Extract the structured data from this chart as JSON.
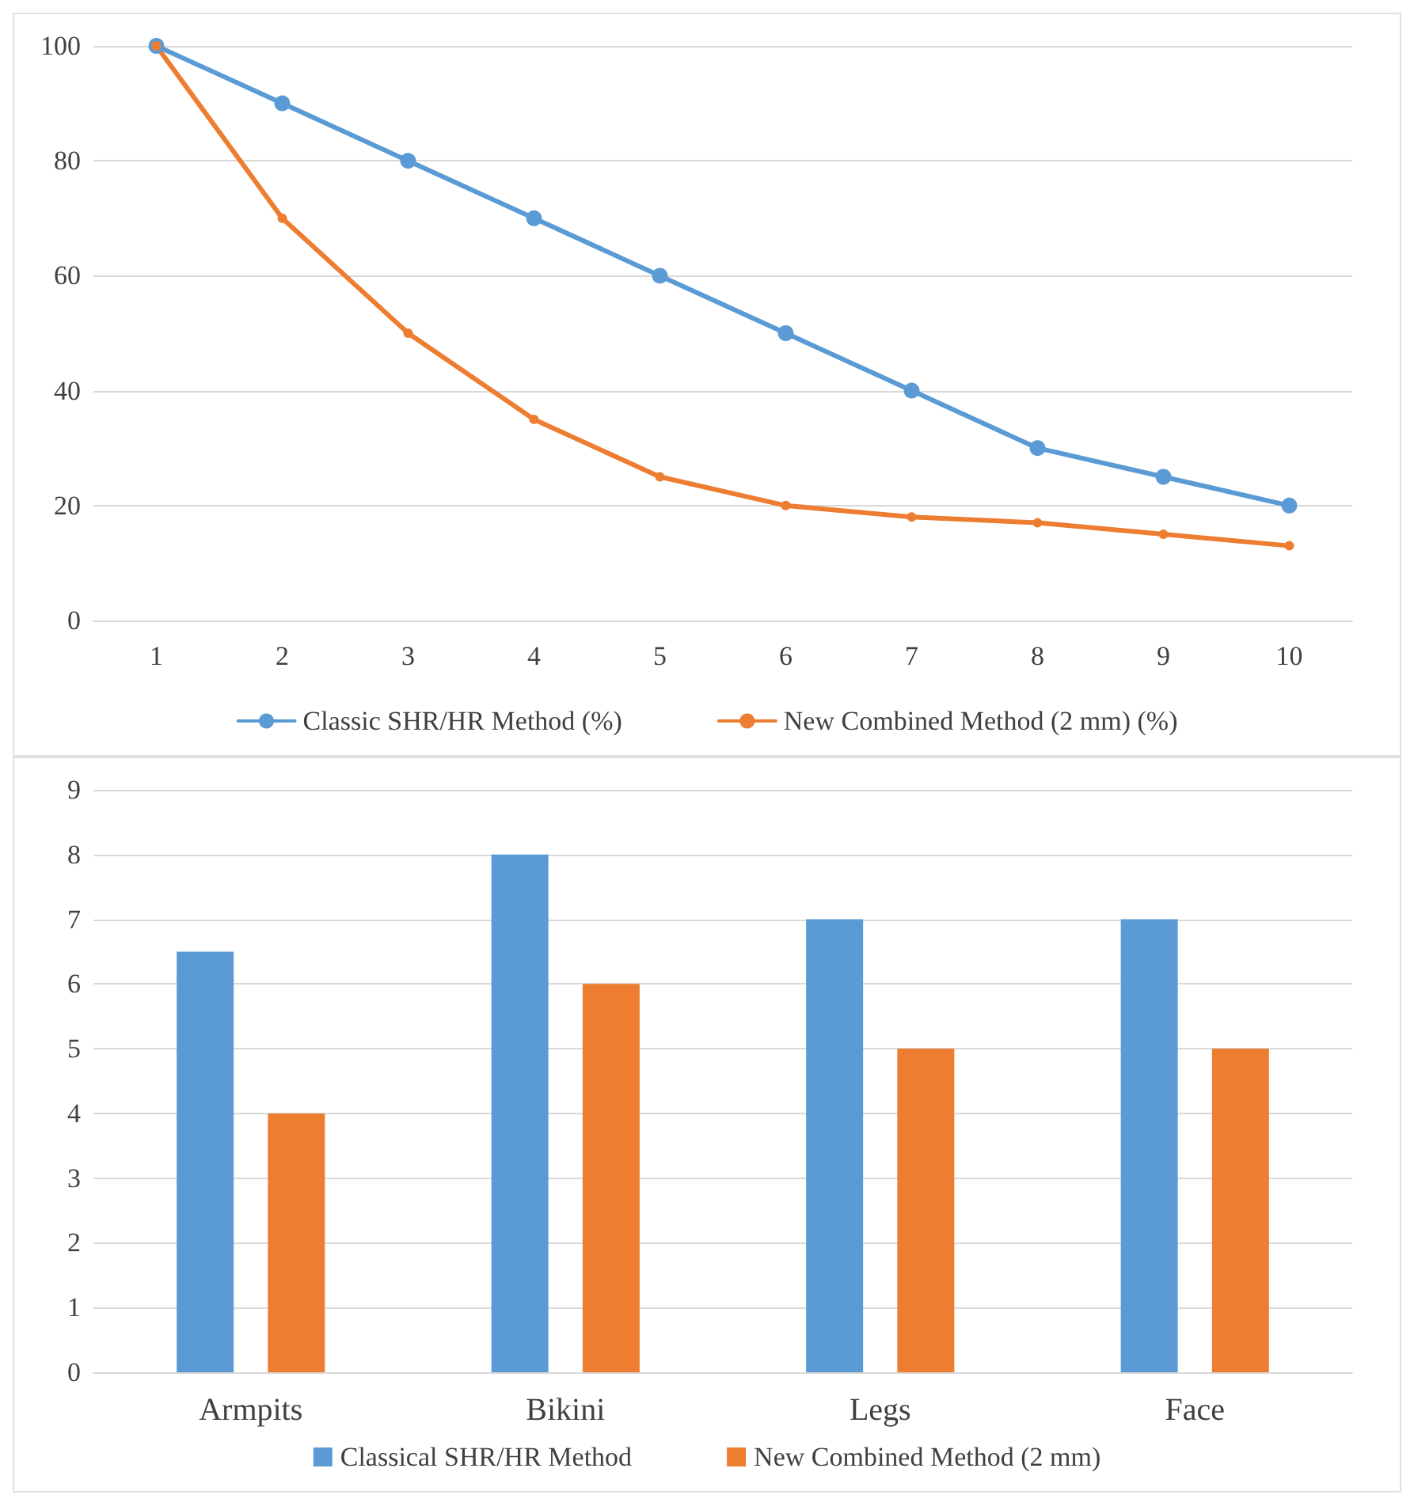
{
  "chart_data": [
    {
      "type": "line",
      "categories": [
        "1",
        "2",
        "3",
        "4",
        "5",
        "6",
        "7",
        "8",
        "9",
        "10"
      ],
      "series": [
        {
          "name": "Classic SHR/HR Method (%)",
          "color": "#5b9bd5",
          "values": [
            100,
            90,
            80,
            70,
            60,
            50,
            40,
            30,
            25,
            20
          ]
        },
        {
          "name": "New Combined Method (2 mm) (%)",
          "color": "#ed7d31",
          "values": [
            100,
            70,
            50,
            35,
            25,
            20,
            18,
            17,
            15,
            13
          ]
        }
      ],
      "ylim": [
        0,
        100
      ],
      "yticks": [
        0,
        20,
        40,
        60,
        80,
        100
      ],
      "grid": "y",
      "legend": "bottom",
      "marker": "circle",
      "line_style": "solid"
    },
    {
      "type": "bar",
      "categories": [
        "Armpits",
        "Bikini",
        "Legs",
        "Face"
      ],
      "series": [
        {
          "name": "Classical SHR/HR Method",
          "color": "#5b9bd5",
          "values": [
            6.5,
            8,
            7,
            7
          ]
        },
        {
          "name": "New Combined Method (2 mm)",
          "color": "#ed7d31",
          "values": [
            4,
            6,
            5,
            5
          ]
        }
      ],
      "ylim": [
        0,
        9
      ],
      "yticks": [
        0,
        1,
        2,
        3,
        4,
        5,
        6,
        7,
        8,
        9
      ],
      "grid": "y",
      "legend": "bottom"
    }
  ]
}
